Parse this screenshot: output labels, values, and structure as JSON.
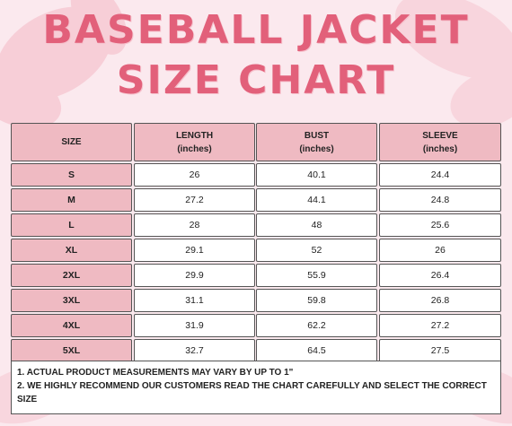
{
  "title": {
    "line1": "BASEBALL JACKET",
    "line2": "SIZE CHART"
  },
  "table": {
    "headers": [
      {
        "label": "SIZE",
        "unit": ""
      },
      {
        "label": "LENGTH",
        "unit": "(inches)"
      },
      {
        "label": "BUST",
        "unit": "(inches)"
      },
      {
        "label": "SLEEVE",
        "unit": "(inches)"
      }
    ],
    "rows": [
      {
        "size": "S",
        "length": "26",
        "bust": "40.1",
        "sleeve": "24.4"
      },
      {
        "size": "M",
        "length": "27.2",
        "bust": "44.1",
        "sleeve": "24.8"
      },
      {
        "size": "L",
        "length": "28",
        "bust": "48",
        "sleeve": "25.6"
      },
      {
        "size": "XL",
        "length": "29.1",
        "bust": "52",
        "sleeve": "26"
      },
      {
        "size": "2XL",
        "length": "29.9",
        "bust": "55.9",
        "sleeve": "26.4"
      },
      {
        "size": "3XL",
        "length": "31.1",
        "bust": "59.8",
        "sleeve": "26.8"
      },
      {
        "size": "4XL",
        "length": "31.9",
        "bust": "62.2",
        "sleeve": "27.2"
      },
      {
        "size": "5XL",
        "length": "32.7",
        "bust": "64.5",
        "sleeve": "27.5"
      }
    ]
  },
  "notes": [
    "1. ACTUAL PRODUCT MEASUREMENTS MAY VARY BY UP TO 1\"",
    "2. WE HIGHLY RECOMMEND OUR CUSTOMERS READ THE CHART CAREFULLY AND SELECT THE CORRECT SIZE"
  ],
  "colors": {
    "title": "#e2607a",
    "header_fill": "#efbac2",
    "background": "#fbe9ee"
  },
  "decoration": "pink-flower-watercolor"
}
